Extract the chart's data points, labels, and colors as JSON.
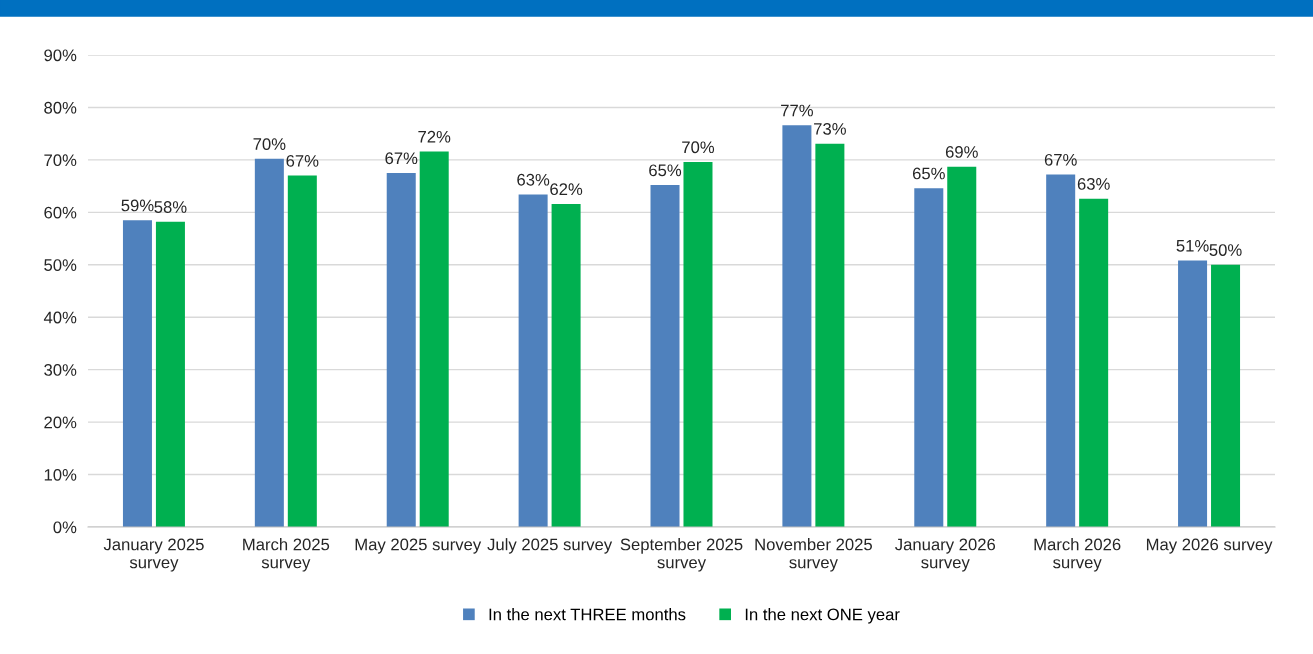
{
  "chart_data": {
    "type": "bar",
    "categories": [
      "January 2025\nsurvey",
      "March 2025\nsurvey",
      "May 2025 survey",
      "July 2025 survey",
      "September 2025\nsurvey",
      "November 2025\nsurvey",
      "January 2026\nsurvey",
      "March 2026\nsurvey",
      "May 2026 survey"
    ],
    "series": [
      {
        "name": "In the next THREE months",
        "color": "#4f81bd",
        "values": [
          58.5,
          70.2,
          67.5,
          63.4,
          65.2,
          76.6,
          64.6,
          67.2,
          50.8
        ],
        "value_labels": [
          "59%",
          "70%",
          "67%",
          "63%",
          "65%",
          "77%",
          "65%",
          "67%",
          "51%"
        ]
      },
      {
        "name": "In the next ONE year",
        "color": "#00b050",
        "values": [
          58.2,
          67.0,
          71.6,
          61.6,
          69.6,
          73.1,
          68.7,
          62.6,
          50.0
        ],
        "value_labels": [
          "58%",
          "67%",
          "72%",
          "62%",
          "70%",
          "73%",
          "69%",
          "63%",
          "50%"
        ]
      }
    ],
    "ylim": [
      0,
      90
    ],
    "yticks": [
      {
        "value": 0,
        "label": "0%"
      },
      {
        "value": 10,
        "label": "10%"
      },
      {
        "value": 20,
        "label": "20%"
      },
      {
        "value": 30,
        "label": "30%"
      },
      {
        "value": 40,
        "label": "40%"
      },
      {
        "value": 50,
        "label": "50%"
      },
      {
        "value": 60,
        "label": "60%"
      },
      {
        "value": 70,
        "label": "70%"
      },
      {
        "value": 80,
        "label": "80%"
      },
      {
        "value": 90,
        "label": "90%"
      }
    ],
    "grid": "y",
    "legend": "bottom"
  }
}
